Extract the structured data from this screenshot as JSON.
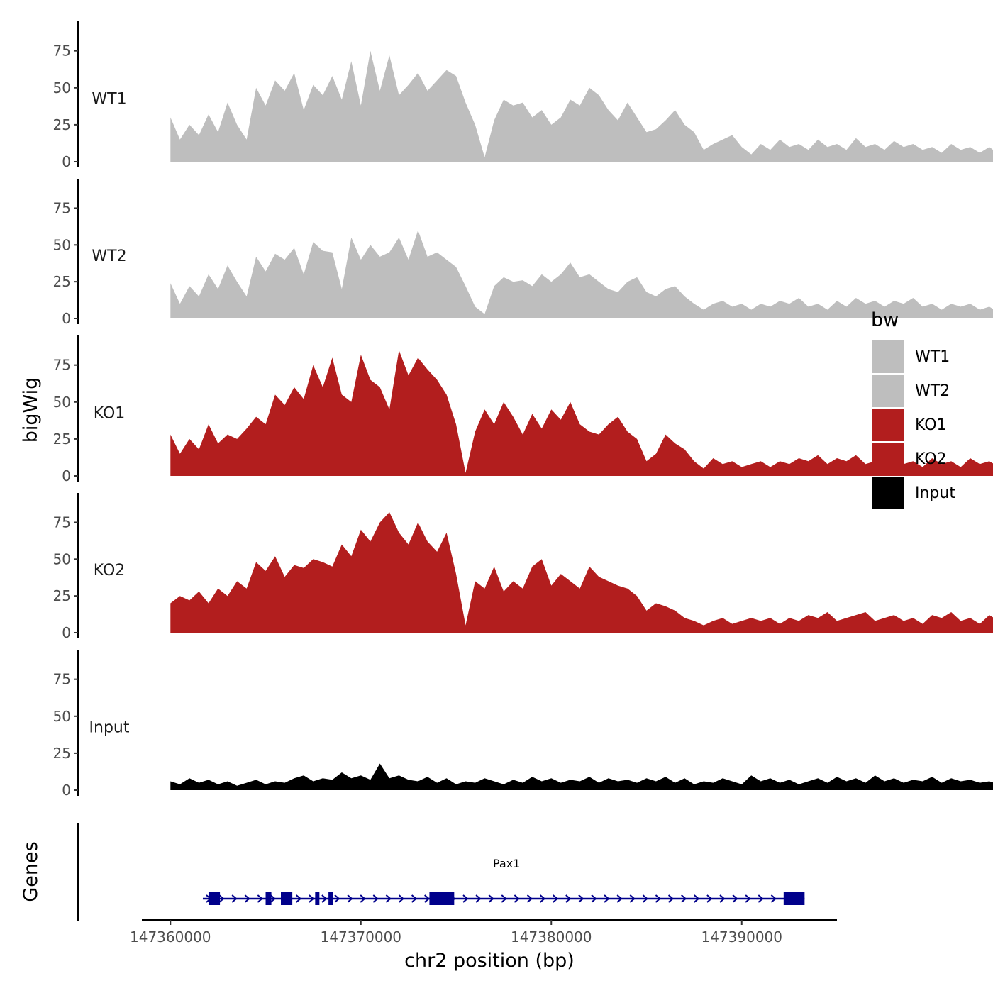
{
  "chart_data": {
    "type": "area",
    "facet_axis_title": "bigWig",
    "genes_axis_title": "Genes",
    "xlabel": "chr2 position (bp)",
    "xlim": [
      147358500,
      147395000
    ],
    "x_ticks": [
      147360000,
      147370000,
      147380000,
      147390000
    ],
    "x_tick_labels": [
      "147360000",
      "147370000",
      "147380000",
      "147390000"
    ],
    "ylim": [
      0,
      95
    ],
    "y_ticks": [
      0,
      25,
      50,
      75
    ],
    "y_tick_labels": [
      "0",
      "25",
      "50",
      "75"
    ],
    "legend": {
      "title": "bw",
      "position": "right",
      "entries": [
        {
          "label": "WT1",
          "color": "#bebebe"
        },
        {
          "label": "WT2",
          "color": "#bebebe"
        },
        {
          "label": "KO1",
          "color": "#b21e1e"
        },
        {
          "label": "KO2",
          "color": "#b21e1e"
        },
        {
          "label": "Input",
          "color": "#000000"
        }
      ]
    },
    "series": [
      {
        "name": "WT1",
        "color": "#bebebe",
        "x_start": 147360000,
        "x_step": 500,
        "values": [
          30,
          15,
          25,
          18,
          32,
          20,
          40,
          25,
          15,
          50,
          38,
          55,
          48,
          60,
          35,
          52,
          45,
          58,
          42,
          68,
          38,
          75,
          48,
          72,
          45,
          52,
          60,
          48,
          55,
          62,
          58,
          40,
          25,
          3,
          28,
          42,
          38,
          40,
          30,
          35,
          25,
          30,
          42,
          38,
          50,
          45,
          35,
          28,
          40,
          30,
          20,
          22,
          28,
          35,
          25,
          20,
          8,
          12,
          15,
          18,
          10,
          5,
          12,
          8,
          15,
          10,
          12,
          8,
          15,
          10,
          12,
          8,
          16,
          10,
          12,
          8,
          14,
          10,
          12,
          8,
          10,
          6,
          12,
          8,
          10,
          6,
          10,
          5,
          8,
          4
        ]
      },
      {
        "name": "WT2",
        "color": "#bebebe",
        "x_start": 147360000,
        "x_step": 500,
        "values": [
          24,
          10,
          22,
          15,
          30,
          20,
          36,
          25,
          15,
          42,
          32,
          44,
          40,
          48,
          30,
          52,
          46,
          45,
          20,
          55,
          40,
          50,
          42,
          45,
          55,
          40,
          60,
          42,
          45,
          40,
          35,
          22,
          8,
          3,
          22,
          28,
          25,
          26,
          22,
          30,
          25,
          30,
          38,
          28,
          30,
          25,
          20,
          18,
          25,
          28,
          18,
          15,
          20,
          22,
          15,
          10,
          6,
          10,
          12,
          8,
          10,
          6,
          10,
          8,
          12,
          10,
          14,
          8,
          10,
          6,
          12,
          8,
          14,
          10,
          12,
          8,
          12,
          10,
          14,
          8,
          10,
          6,
          10,
          8,
          10,
          6,
          8,
          4,
          6,
          4
        ]
      },
      {
        "name": "KO1",
        "color": "#b21e1e",
        "x_start": 147360000,
        "x_step": 500,
        "values": [
          28,
          15,
          25,
          18,
          35,
          22,
          28,
          25,
          32,
          40,
          35,
          55,
          48,
          60,
          52,
          75,
          60,
          80,
          55,
          50,
          82,
          65,
          60,
          45,
          85,
          68,
          80,
          72,
          65,
          55,
          35,
          2,
          30,
          45,
          35,
          50,
          40,
          28,
          42,
          32,
          45,
          38,
          50,
          35,
          30,
          28,
          35,
          40,
          30,
          25,
          10,
          15,
          28,
          22,
          18,
          10,
          5,
          12,
          8,
          10,
          6,
          8,
          10,
          6,
          10,
          8,
          12,
          10,
          14,
          8,
          12,
          10,
          14,
          8,
          10,
          12,
          14,
          8,
          10,
          6,
          12,
          8,
          10,
          6,
          12,
          8,
          10,
          6,
          8,
          4
        ]
      },
      {
        "name": "KO2",
        "color": "#b21e1e",
        "x_start": 147360000,
        "x_step": 500,
        "values": [
          20,
          25,
          22,
          28,
          20,
          30,
          25,
          35,
          30,
          48,
          42,
          52,
          38,
          46,
          44,
          50,
          48,
          45,
          60,
          52,
          70,
          62,
          75,
          82,
          68,
          60,
          75,
          62,
          55,
          68,
          40,
          5,
          35,
          30,
          45,
          28,
          35,
          30,
          45,
          50,
          32,
          40,
          35,
          30,
          45,
          38,
          35,
          32,
          30,
          25,
          15,
          20,
          18,
          15,
          10,
          8,
          5,
          8,
          10,
          6,
          8,
          10,
          8,
          10,
          6,
          10,
          8,
          12,
          10,
          14,
          8,
          10,
          12,
          14,
          8,
          10,
          12,
          8,
          10,
          6,
          12,
          10,
          14,
          8,
          10,
          6,
          12,
          8,
          10,
          6
        ]
      },
      {
        "name": "Input",
        "color": "#000000",
        "x_start": 147360000,
        "x_step": 500,
        "values": [
          6,
          4,
          8,
          5,
          7,
          4,
          6,
          3,
          5,
          7,
          4,
          6,
          5,
          8,
          10,
          6,
          8,
          7,
          12,
          8,
          10,
          7,
          18,
          8,
          10,
          7,
          6,
          9,
          5,
          8,
          4,
          6,
          5,
          8,
          6,
          4,
          7,
          5,
          9,
          6,
          8,
          5,
          7,
          6,
          9,
          5,
          8,
          6,
          7,
          5,
          8,
          6,
          9,
          5,
          8,
          4,
          6,
          5,
          8,
          6,
          4,
          10,
          6,
          8,
          5,
          7,
          4,
          6,
          8,
          5,
          9,
          6,
          8,
          5,
          10,
          6,
          8,
          5,
          7,
          6,
          9,
          5,
          8,
          6,
          7,
          5,
          6,
          4,
          5,
          3
        ]
      }
    ],
    "genes": [
      {
        "name": "Pax1",
        "strand": "+",
        "start": 147362000,
        "end": 147393300,
        "color": "#00008b",
        "exons": [
          [
            147362000,
            147362600
          ],
          [
            147365000,
            147365300
          ],
          [
            147365800,
            147366400
          ],
          [
            147367600,
            147367800
          ],
          [
            147368300,
            147368500
          ],
          [
            147373600,
            147374900
          ],
          [
            147392200,
            147393300
          ]
        ]
      }
    ]
  }
}
